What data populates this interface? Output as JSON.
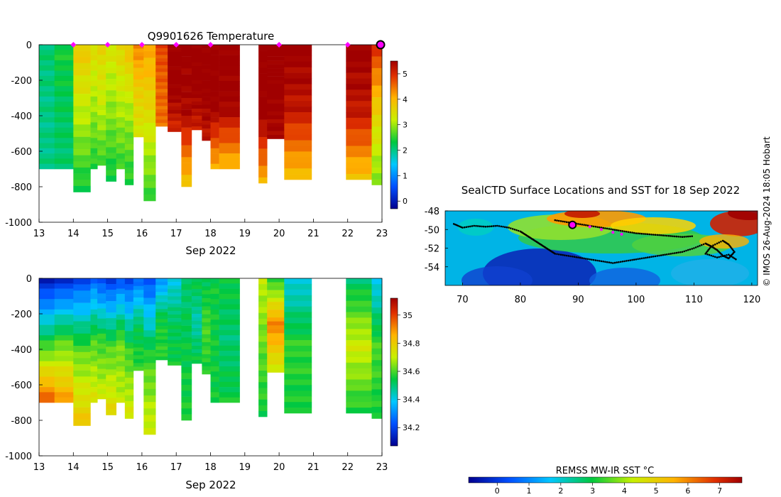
{
  "watermark": "© IMOS 26-Aug-2024 18:05 Hobart",
  "colorbar_label": "REMSS MW-IR SST °C",
  "chart_data": [
    {
      "type": "heatmap",
      "title": "Q9901626  Temperature",
      "xlabel": "Sep 2022",
      "ylabel": "",
      "xlim": [
        13,
        23
      ],
      "ylim": [
        -1000,
        0
      ],
      "xticks": [
        "13",
        "14",
        "15",
        "16",
        "17",
        "18",
        "19",
        "20",
        "21",
        "22",
        "23"
      ],
      "yticks": [
        "0",
        "-200",
        "-400",
        "-600",
        "-800",
        "-1000"
      ],
      "colorbar": {
        "range": [
          -0.3,
          5.5
        ],
        "ticks": [
          "0",
          "1",
          "2",
          "3",
          "4",
          "5"
        ]
      },
      "profiles": [
        {
          "x0": 13.0,
          "x1": 13.45,
          "depth": 700,
          "top": 2.1,
          "mid": 2.0,
          "bottom": 2.0
        },
        {
          "x0": 13.45,
          "x1": 14.0,
          "depth": 700,
          "top": 2.4,
          "mid": 2.2,
          "bottom": 2.1
        },
        {
          "x0": 14.0,
          "x1": 14.5,
          "depth": 830,
          "top": 3.8,
          "mid": 3.1,
          "bottom": 2.3
        },
        {
          "x0": 14.5,
          "x1": 14.7,
          "depth": 700,
          "top": 3.5,
          "mid": 3.0,
          "bottom": 2.4
        },
        {
          "x0": 14.7,
          "x1": 14.95,
          "depth": 680,
          "top": 3.6,
          "mid": 3.2,
          "bottom": 2.5
        },
        {
          "x0": 14.95,
          "x1": 15.25,
          "depth": 770,
          "top": 3.4,
          "mid": 2.9,
          "bottom": 2.3
        },
        {
          "x0": 15.25,
          "x1": 15.5,
          "depth": 700,
          "top": 3.6,
          "mid": 3.1,
          "bottom": 2.5
        },
        {
          "x0": 15.5,
          "x1": 15.75,
          "depth": 790,
          "top": 3.9,
          "mid": 3.0,
          "bottom": 2.4
        },
        {
          "x0": 15.75,
          "x1": 16.05,
          "depth": 520,
          "top": 4.4,
          "mid": 3.7,
          "bottom": 3.3
        },
        {
          "x0": 16.05,
          "x1": 16.4,
          "depth": 880,
          "top": 4.2,
          "mid": 3.4,
          "bottom": 2.5
        },
        {
          "x0": 16.4,
          "x1": 16.75,
          "depth": 460,
          "top": 4.8,
          "mid": 4.6,
          "bottom": 4.5
        },
        {
          "x0": 16.75,
          "x1": 17.15,
          "depth": 490,
          "top": 5.6,
          "mid": 5.6,
          "bottom": 5.0
        },
        {
          "x0": 17.15,
          "x1": 17.45,
          "depth": 800,
          "top": 5.6,
          "mid": 5.4,
          "bottom": 3.7
        },
        {
          "x0": 17.45,
          "x1": 17.75,
          "depth": 480,
          "top": 5.6,
          "mid": 5.6,
          "bottom": 5.1
        },
        {
          "x0": 17.75,
          "x1": 18.0,
          "depth": 540,
          "top": 5.6,
          "mid": 5.6,
          "bottom": 5.2
        },
        {
          "x0": 18.0,
          "x1": 18.25,
          "depth": 700,
          "top": 5.6,
          "mid": 5.6,
          "bottom": 4.0
        },
        {
          "x0": 18.25,
          "x1": 18.85,
          "depth": 700,
          "top": 5.6,
          "mid": 5.5,
          "bottom": 3.9
        },
        {
          "x0": 19.4,
          "x1": 19.65,
          "depth": 780,
          "top": 5.6,
          "mid": 5.6,
          "bottom": 4.0
        },
        {
          "x0": 19.65,
          "x1": 20.15,
          "depth": 530,
          "top": 5.6,
          "mid": 5.6,
          "bottom": 5.4
        },
        {
          "x0": 20.15,
          "x1": 20.95,
          "depth": 760,
          "top": 5.6,
          "mid": 5.2,
          "bottom": 3.8
        },
        {
          "x0": 21.95,
          "x1": 22.7,
          "depth": 760,
          "top": 5.6,
          "mid": 5.2,
          "bottom": 3.8
        },
        {
          "x0": 22.7,
          "x1": 23.0,
          "depth": 790,
          "top": 5.0,
          "mid": 3.6,
          "bottom": 2.8
        }
      ],
      "markers_x": [
        14,
        15,
        16,
        17,
        18,
        20,
        22
      ],
      "highlight_x": 23
    },
    {
      "type": "heatmap",
      "title": "",
      "xlabel": "Sep 2022",
      "ylabel": "",
      "xlim": [
        13,
        23
      ],
      "ylim": [
        -1000,
        0
      ],
      "xticks": [
        "13",
        "14",
        "15",
        "16",
        "17",
        "18",
        "19",
        "20",
        "21",
        "22",
        "23"
      ],
      "yticks": [
        "0",
        "-200",
        "-400",
        "-600",
        "-800",
        "-1000"
      ],
      "colorbar": {
        "range": [
          34.07,
          35.12
        ],
        "ticks": [
          "34.2",
          "34.4",
          "34.6",
          "34.8",
          "35"
        ]
      },
      "profiles": [
        {
          "x0": 13.0,
          "x1": 13.45,
          "depth": 700,
          "top": 34.12,
          "mid": 34.55,
          "bottom": 34.98
        },
        {
          "x0": 13.45,
          "x1": 14.0,
          "depth": 700,
          "top": 34.15,
          "mid": 34.6,
          "bottom": 34.9
        },
        {
          "x0": 14.0,
          "x1": 14.5,
          "depth": 830,
          "top": 34.2,
          "mid": 34.62,
          "bottom": 34.82
        },
        {
          "x0": 14.5,
          "x1": 14.7,
          "depth": 700,
          "top": 34.25,
          "mid": 34.6,
          "bottom": 34.75
        },
        {
          "x0": 14.7,
          "x1": 14.95,
          "depth": 680,
          "top": 34.2,
          "mid": 34.58,
          "bottom": 34.72
        },
        {
          "x0": 14.95,
          "x1": 15.25,
          "depth": 770,
          "top": 34.18,
          "mid": 34.6,
          "bottom": 34.78
        },
        {
          "x0": 15.25,
          "x1": 15.5,
          "depth": 700,
          "top": 34.22,
          "mid": 34.62,
          "bottom": 34.7
        },
        {
          "x0": 15.5,
          "x1": 15.75,
          "depth": 790,
          "top": 34.2,
          "mid": 34.58,
          "bottom": 34.74
        },
        {
          "x0": 15.75,
          "x1": 16.05,
          "depth": 520,
          "top": 34.25,
          "mid": 34.52,
          "bottom": 34.58
        },
        {
          "x0": 16.05,
          "x1": 16.4,
          "depth": 880,
          "top": 34.22,
          "mid": 34.58,
          "bottom": 34.73
        },
        {
          "x0": 16.4,
          "x1": 16.75,
          "depth": 460,
          "top": 34.3,
          "mid": 34.55,
          "bottom": 34.58
        },
        {
          "x0": 16.75,
          "x1": 17.15,
          "depth": 490,
          "top": 34.4,
          "mid": 34.52,
          "bottom": 34.55
        },
        {
          "x0": 17.15,
          "x1": 17.45,
          "depth": 800,
          "top": 34.5,
          "mid": 34.54,
          "bottom": 34.56
        },
        {
          "x0": 17.45,
          "x1": 17.75,
          "depth": 480,
          "top": 34.55,
          "mid": 34.45,
          "bottom": 34.55
        },
        {
          "x0": 17.75,
          "x1": 18.0,
          "depth": 540,
          "top": 34.52,
          "mid": 34.6,
          "bottom": 34.56
        },
        {
          "x0": 18.0,
          "x1": 18.25,
          "depth": 700,
          "top": 34.55,
          "mid": 34.55,
          "bottom": 34.55
        },
        {
          "x0": 18.25,
          "x1": 18.85,
          "depth": 700,
          "top": 34.55,
          "mid": 34.5,
          "bottom": 34.55
        },
        {
          "x0": 19.4,
          "x1": 19.65,
          "depth": 780,
          "top": 34.7,
          "mid": 34.62,
          "bottom": 34.55
        },
        {
          "x0": 19.65,
          "x1": 20.15,
          "depth": 530,
          "top": 34.55,
          "mid": 34.92,
          "bottom": 34.7
        },
        {
          "x0": 20.15,
          "x1": 20.95,
          "depth": 760,
          "top": 34.4,
          "mid": 34.58,
          "bottom": 34.55
        },
        {
          "x0": 21.95,
          "x1": 22.7,
          "depth": 760,
          "top": 34.5,
          "mid": 34.72,
          "bottom": 34.55
        },
        {
          "x0": 22.7,
          "x1": 23.0,
          "depth": 790,
          "top": 34.38,
          "mid": 34.6,
          "bottom": 34.55
        }
      ]
    },
    {
      "type": "heatmap",
      "title": "SealCTD Surface Locations and SST for 18 Sep 2022",
      "xlabel": "",
      "ylabel": "",
      "xlim": [
        67,
        121
      ],
      "ylim": [
        -56,
        -48
      ],
      "xticks": [
        "70",
        "80",
        "90",
        "100",
        "110",
        "120"
      ],
      "yticks": [
        "-48",
        "-50",
        "-52",
        "-54"
      ],
      "colorbar": {
        "range": [
          -0.9,
          7.7
        ],
        "ticks": [
          "0",
          "1",
          "2",
          "3",
          "4",
          "5",
          "6",
          "7"
        ]
      },
      "track_lon": [
        68.5,
        70,
        72,
        74,
        76,
        78,
        80,
        81,
        82,
        83,
        84,
        85,
        86,
        88,
        90,
        92,
        94,
        96,
        98,
        100,
        102,
        104,
        106,
        108,
        110,
        112,
        113,
        114,
        115,
        116,
        117,
        116,
        115,
        113,
        112,
        114,
        116,
        117.5
      ],
      "track_lat": [
        -49.4,
        -49.8,
        -49.6,
        -49.7,
        -49.6,
        -49.8,
        -50.2,
        -50.6,
        -51.0,
        -51.4,
        -51.8,
        -52.2,
        -52.6,
        -52.8,
        -53.0,
        -53.2,
        -53.4,
        -53.6,
        -53.4,
        -53.2,
        -53.0,
        -52.8,
        -52.6,
        -52.4,
        -52.0,
        -51.5,
        -51.8,
        -52.2,
        -52.8,
        -53.1,
        -52.4,
        -51.6,
        -51.2,
        -51.8,
        -52.6,
        -53.0,
        -52.7,
        -53.3
      ],
      "track2_lon": [
        86,
        88,
        90,
        92,
        94,
        96,
        98,
        100,
        102,
        104,
        106,
        108,
        110
      ],
      "track2_lat": [
        -49.0,
        -49.2,
        -49.4,
        -49.6,
        -49.8,
        -50.0,
        -50.2,
        -50.4,
        -50.5,
        -50.6,
        -50.7,
        -50.8,
        -50.7
      ],
      "magenta_lon": [
        92,
        94,
        96,
        97.5
      ],
      "magenta_lat": [
        -49.7,
        -50.0,
        -50.3,
        -50.5
      ],
      "highlight": {
        "lon": 89,
        "lat": -49.5
      }
    }
  ]
}
